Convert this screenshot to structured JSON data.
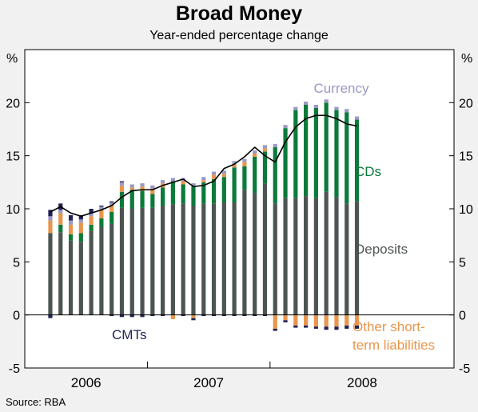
{
  "title": "Broad Money",
  "subtitle": "Year-ended percentage change",
  "source": "Source: RBA",
  "colors": {
    "deposits": "#4d5553",
    "cds": "#0b7a3a",
    "currency": "#9b99c5",
    "cmts": "#222255",
    "other": "#e8964d",
    "line": "#000000",
    "panel": "#ffffff",
    "background": "#f1f1f1"
  },
  "chart_data": {
    "type": "bar",
    "title": "Broad Money",
    "subtitle": "Year-ended percentage change",
    "y_unit_left": "%",
    "y_unit_right": "%",
    "ylim": [
      -5,
      25
    ],
    "yticks": [
      -5,
      0,
      5,
      10,
      15,
      20
    ],
    "ytick_labels": [
      "-5",
      "0",
      "5",
      "10",
      "15",
      "20"
    ],
    "x_range": [
      "2005-07",
      "2008-12"
    ],
    "year_labels": [
      "2006",
      "2007",
      "2008"
    ],
    "x_ticks": [
      "2006-07",
      "2007-07"
    ],
    "grid": false,
    "months": [
      "2005-09",
      "2005-10",
      "2005-11",
      "2005-12",
      "2006-01",
      "2006-02",
      "2006-03",
      "2006-04",
      "2006-05",
      "2006-06",
      "2006-07",
      "2006-08",
      "2006-09",
      "2006-10",
      "2006-11",
      "2006-12",
      "2007-01",
      "2007-02",
      "2007-03",
      "2007-04",
      "2007-05",
      "2007-06",
      "2007-07",
      "2007-08",
      "2007-09",
      "2007-10",
      "2007-11",
      "2007-12",
      "2008-01",
      "2008-02",
      "2008-03"
    ],
    "series": [
      {
        "name": "Deposits",
        "key": "deposits",
        "values": [
          7.7,
          7.8,
          7.0,
          6.9,
          7.9,
          8.3,
          8.6,
          10.1,
          10.0,
          10.1,
          10.1,
          10.3,
          10.4,
          10.5,
          10.3,
          10.5,
          10.5,
          10.6,
          10.6,
          11.8,
          11.5,
          12.4,
          10.5,
          11.0,
          11.0,
          11.2,
          11.0,
          11.6,
          11.1,
          10.5,
          10.7
        ]
      },
      {
        "name": "CDs",
        "key": "cds",
        "values": [
          0.0,
          0.7,
          0.6,
          0.8,
          0.6,
          0.8,
          1.1,
          1.5,
          1.8,
          1.6,
          1.3,
          1.7,
          2.2,
          1.8,
          1.8,
          2.0,
          2.3,
          2.4,
          3.3,
          2.2,
          3.4,
          3.0,
          5.3,
          6.6,
          8.3,
          8.6,
          8.5,
          8.4,
          8.2,
          8.6,
          7.7
        ]
      },
      {
        "name": "Currency",
        "key": "currency",
        "values": [
          0.4,
          0.3,
          0.4,
          0.3,
          0.3,
          0.3,
          0.3,
          0.3,
          0.3,
          0.3,
          0.3,
          0.3,
          0.3,
          0.3,
          0.3,
          0.3,
          0.3,
          0.3,
          0.3,
          0.3,
          0.3,
          0.3,
          0.3,
          0.3,
          0.3,
          0.3,
          0.3,
          0.3,
          0.3,
          0.3,
          0.3
        ]
      },
      {
        "name": "CMTs",
        "key": "cmts",
        "values": [
          0.6,
          0.6,
          0.5,
          0.4,
          0.4,
          0.1,
          0.1,
          0.1,
          0.0,
          0.0,
          0.0,
          0.0,
          0.0,
          0.0,
          0.0,
          0.0,
          0.0,
          0.0,
          0.0,
          0.0,
          0.0,
          0.0,
          0.0,
          0.0,
          0.0,
          0.0,
          0.0,
          0.0,
          0.0,
          0.0,
          0.0
        ]
      },
      {
        "name": "Other short-term liabilities",
        "key": "other",
        "values": [
          1.2,
          1.1,
          0.9,
          1.0,
          0.8,
          0.8,
          0.6,
          0.6,
          0.2,
          0.4,
          0.5,
          0.4,
          -0.4,
          0.3,
          -0.3,
          0.2,
          0.4,
          0.3,
          0.3,
          0.4,
          0.3,
          0.3,
          -1.3,
          -0.5,
          -1.0,
          -1.0,
          -1.1,
          -1.1,
          -1.1,
          -1.0,
          -1.0
        ]
      },
      {
        "name": "CMTs",
        "key": "cmts_neg",
        "values": [
          -0.3,
          0.0,
          0.0,
          0.0,
          0.0,
          0.0,
          -0.1,
          -0.2,
          -0.2,
          -0.2,
          -0.1,
          -0.1,
          0.0,
          -0.1,
          -0.2,
          -0.1,
          -0.1,
          -0.1,
          -0.1,
          -0.1,
          -0.1,
          -0.1,
          -0.2,
          -0.2,
          -0.2,
          -0.2,
          -0.2,
          -0.3,
          -0.3,
          -0.3,
          -0.3
        ]
      },
      {
        "name": "Broad money",
        "key": "line",
        "type": "line",
        "values": [
          9.7,
          10.2,
          9.6,
          9.3,
          9.6,
          9.9,
          10.3,
          11.1,
          11.7,
          11.8,
          11.8,
          12.2,
          12.5,
          12.8,
          12.1,
          12.2,
          12.6,
          13.8,
          14.2,
          14.9,
          15.8,
          15.0,
          14.4,
          16.3,
          17.7,
          18.5,
          18.8,
          18.8,
          18.5,
          18.0,
          17.8
        ]
      }
    ],
    "annotations": [
      {
        "text": "Currency",
        "color_key": "currency"
      },
      {
        "text": "CDs",
        "color_key": "cds"
      },
      {
        "text": "Deposits",
        "color_key": "deposits"
      },
      {
        "text": "CMTs",
        "color_key": "cmts"
      },
      {
        "text": "Other short-",
        "color_key": "other"
      },
      {
        "text": "term liabilities",
        "color_key": "other"
      }
    ]
  }
}
